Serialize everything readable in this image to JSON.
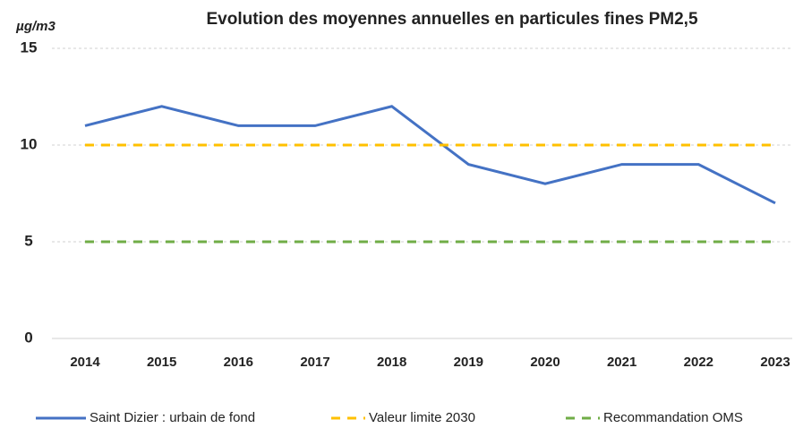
{
  "chart_data": {
    "type": "line",
    "title": "Evolution des moyennes annuelles en particules fines PM2,5",
    "ylabel": "µg/m3",
    "categories": [
      "2014",
      "2015",
      "2016",
      "2017",
      "2018",
      "2019",
      "2020",
      "2021",
      "2022",
      "2023"
    ],
    "series": [
      {
        "name": "Saint Dizier : urbain de fond",
        "color": "#4472c4",
        "dashed": false,
        "values": [
          11,
          12,
          11,
          11,
          12,
          9,
          8,
          9,
          9,
          7
        ]
      },
      {
        "name": "Valeur limite 2030",
        "color": "#ffc000",
        "dashed": true,
        "values": [
          10,
          10,
          10,
          10,
          10,
          10,
          10,
          10,
          10,
          10
        ]
      },
      {
        "name": "Recommandation OMS",
        "color": "#70ad47",
        "dashed": true,
        "values": [
          5,
          5,
          5,
          5,
          5,
          5,
          5,
          5,
          5,
          5
        ]
      }
    ],
    "ylim": [
      0,
      15
    ],
    "yticks": [
      0,
      5,
      10,
      15
    ],
    "grid": true,
    "legend": "bottom"
  }
}
